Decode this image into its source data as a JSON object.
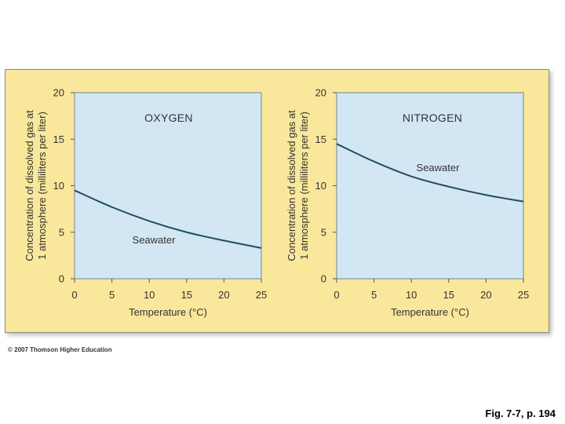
{
  "chart_data": [
    {
      "type": "line",
      "title": "OXYGEN",
      "xlabel": "Temperature (°C)",
      "ylabel_lines": [
        "Concentration of dissolved gas at",
        "1 atmosphere (milliliters per liter)"
      ],
      "xlim": [
        0,
        25
      ],
      "ylim": [
        0,
        20
      ],
      "xticks": [
        0,
        5,
        10,
        15,
        20,
        25
      ],
      "yticks": [
        0,
        5,
        10,
        15,
        20
      ],
      "series": [
        {
          "name": "Seawater",
          "x": [
            0,
            5,
            10,
            15,
            20,
            25
          ],
          "y": [
            9.5,
            7.7,
            6.2,
            5.0,
            4.1,
            3.3
          ]
        }
      ]
    },
    {
      "type": "line",
      "title": "NITROGEN",
      "xlabel": "Temperature (°C)",
      "ylabel_lines": [
        "Concentration of dissolved gas at",
        "1 atmosphere (milliliters per liter)"
      ],
      "xlim": [
        0,
        25
      ],
      "ylim": [
        0,
        20
      ],
      "xticks": [
        0,
        5,
        10,
        15,
        20,
        25
      ],
      "yticks": [
        0,
        5,
        10,
        15,
        20
      ],
      "series": [
        {
          "name": "Seawater",
          "x": [
            0,
            5,
            10,
            15,
            20,
            25
          ],
          "y": [
            14.5,
            12.6,
            11.0,
            9.9,
            9.0,
            8.3
          ]
        }
      ]
    }
  ],
  "colors": {
    "panel_background": "#f9e79b",
    "plot_background": "#d3e6f4",
    "curve": "#1f4e5e",
    "text": "#333333"
  },
  "copyright": "© 2007 Thomson Higher Education",
  "caption": "Fig. 7-7, p. 194"
}
